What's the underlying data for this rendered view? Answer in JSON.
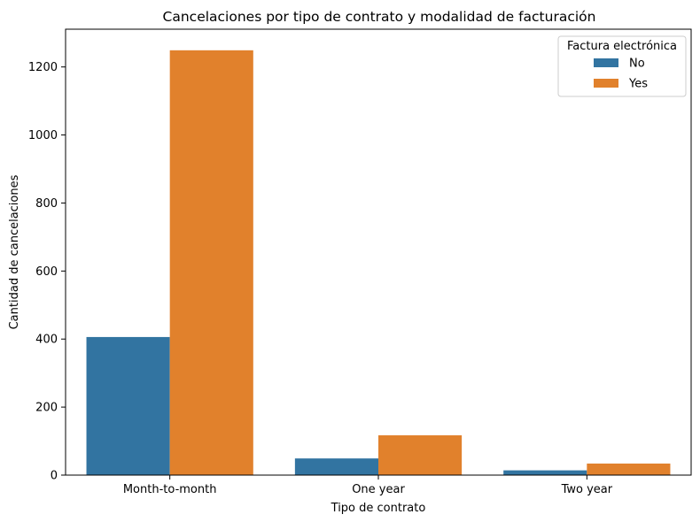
{
  "chart_data": {
    "type": "bar",
    "title": "Cancelaciones por tipo de contrato y modalidad de facturación",
    "xlabel": "Tipo de contrato",
    "ylabel": "Cantidad de cancelaciones",
    "categories": [
      "Month-to-month",
      "One year",
      "Two year"
    ],
    "series": [
      {
        "name": "No",
        "values": [
          406,
          49,
          14
        ],
        "color": "#3274a1"
      },
      {
        "name": "Yes",
        "values": [
          1249,
          117,
          34
        ],
        "color": "#e1812c"
      }
    ],
    "ylim": [
      0,
      1311
    ],
    "yticks": [
      0,
      200,
      400,
      600,
      800,
      1000,
      1200
    ],
    "grid": false,
    "legend": {
      "title": "Factura electrónica",
      "placement": "top-right"
    }
  }
}
